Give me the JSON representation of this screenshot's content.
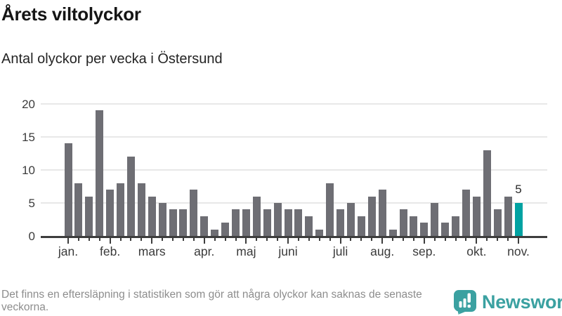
{
  "chart_data": {
    "type": "bar",
    "title": "Årets viltolyckor",
    "subtitle": "Antal olyckor per vecka i Östersund",
    "values": [
      14,
      8,
      6,
      19,
      7,
      8,
      12,
      8,
      6,
      5,
      4,
      4,
      7,
      3,
      1,
      2,
      4,
      4,
      6,
      4,
      5,
      4,
      4,
      3,
      1,
      8,
      4,
      5,
      3,
      6,
      7,
      1,
      4,
      3,
      2,
      5,
      2,
      3,
      7,
      6,
      13,
      4,
      6,
      5
    ],
    "highlight_index": 43,
    "highlight_label": "5",
    "ylim": [
      0,
      20
    ],
    "yticks": [
      0,
      5,
      10,
      15,
      20
    ],
    "grid": true,
    "legend": "none",
    "month_ticks": [
      {
        "label": "jan.",
        "week": 0
      },
      {
        "label": "feb.",
        "week": 4
      },
      {
        "label": "mars",
        "week": 8
      },
      {
        "label": "apr.",
        "week": 13
      },
      {
        "label": "maj",
        "week": 17
      },
      {
        "label": "juni",
        "week": 21
      },
      {
        "label": "juli",
        "week": 26
      },
      {
        "label": "aug.",
        "week": 30
      },
      {
        "label": "sep.",
        "week": 34
      },
      {
        "label": "okt.",
        "week": 39
      },
      {
        "label": "nov.",
        "week": 43
      }
    ],
    "colors": {
      "bar": "#6e6e74",
      "highlight": "#00a2a2",
      "grid": "#e8e8e8",
      "axis": "#3d3d3d",
      "labels": "#3c3c3c"
    }
  },
  "footer": {
    "note": "Det finns en eftersläpning i statistiken som gör att några olyckor kan saknas de senaste veckorna.",
    "brand": "Newsworthy",
    "brand_color": "#3ba1a1"
  }
}
